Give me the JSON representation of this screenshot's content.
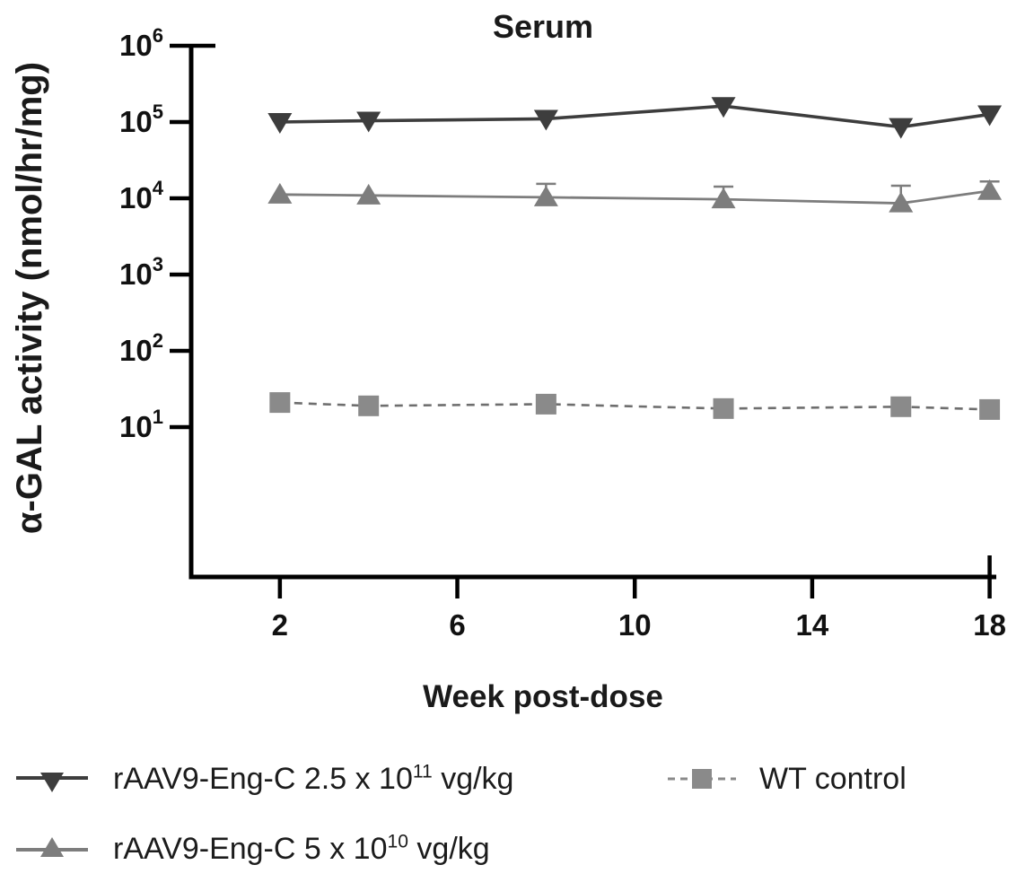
{
  "colors": {
    "axis": "#000000",
    "high_dose": "#3d3d3d",
    "mid_dose": "#7d7d7d",
    "wt_line": "#6e6e6e",
    "wt_marker": "#8a8a8a"
  },
  "chart_data": {
    "type": "line",
    "title": "Serum",
    "xlabel": "Week post-dose",
    "ylabel": "α-GAL activity (nmol/hr/mg)",
    "x_scale": "linear",
    "y_scale": "log10",
    "xlim": [
      0,
      18.15
    ],
    "ylim": [
      0.11,
      1000000
    ],
    "x_tick_values": [
      2,
      6,
      10,
      14,
      18
    ],
    "y_tick_exponents": [
      6,
      5,
      4,
      3,
      2,
      1
    ],
    "grid": false,
    "legend_position": "bottom",
    "x": [
      2,
      4,
      8,
      12,
      16,
      18
    ],
    "series": [
      {
        "name": "rAAV9-Eng-C 2.5 x 10^11 vg/kg",
        "marker": "triangle-down",
        "line": "solid",
        "color": "#3d3d3d",
        "values": [
          100000,
          104000,
          110000,
          162000,
          86000,
          126000
        ],
        "err_high": [
          null,
          null,
          null,
          null,
          null,
          null
        ]
      },
      {
        "name": "rAAV9-Eng-C 5 x 10^10 vg/kg",
        "marker": "triangle-up",
        "line": "solid",
        "color": "#7d7d7d",
        "values": [
          11200,
          10900,
          10300,
          9700,
          8600,
          12500
        ],
        "err_high": [
          null,
          null,
          15500,
          14200,
          14600,
          16600
        ]
      },
      {
        "name": "WT control",
        "marker": "square",
        "line": "dashed",
        "color": "#6e6e6e",
        "marker_color": "#8a8a8a",
        "values": [
          21,
          19,
          20,
          17.5,
          18.5,
          17
        ],
        "err_high": [
          null,
          null,
          null,
          null,
          null,
          null
        ]
      }
    ]
  },
  "legend": {
    "items": [
      {
        "before": "rAAV9-Eng-C 2.5 x 10",
        "sup": "11",
        "after": " vg/kg"
      },
      {
        "before": "rAAV9-Eng-C 5 x 10",
        "sup": "10",
        "after": " vg/kg"
      },
      {
        "before": "WT control",
        "sup": "",
        "after": ""
      }
    ]
  }
}
